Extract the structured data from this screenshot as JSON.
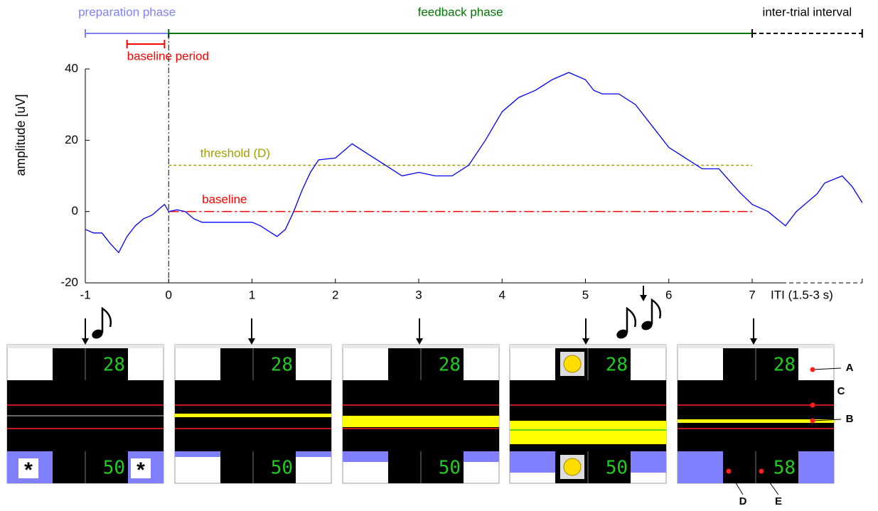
{
  "chart_data": {
    "type": "line",
    "ylabel": "amplitude [uV]",
    "x": [
      -1,
      -0.9,
      -0.8,
      -0.7,
      -0.6,
      -0.5,
      -0.4,
      -0.3,
      -0.2,
      -0.1,
      -0.05,
      0,
      0.1,
      0.2,
      0.3,
      0.4,
      0.6,
      0.8,
      1.0,
      1.1,
      1.3,
      1.4,
      1.5,
      1.6,
      1.7,
      1.8,
      2.0,
      2.2,
      2.4,
      2.6,
      2.8,
      3.0,
      3.2,
      3.4,
      3.6,
      3.8,
      4.0,
      4.2,
      4.4,
      4.6,
      4.8,
      5.0,
      5.1,
      5.2,
      5.4,
      5.6,
      5.8,
      6.0,
      6.2,
      6.4,
      6.6,
      6.85,
      7.0,
      7.19,
      7.4,
      7.53,
      7.78,
      7.87,
      8.08,
      8.2,
      8.32
    ],
    "series": [
      {
        "color": "#0000ff",
        "values": [
          -5,
          -6,
          -6,
          -9,
          -11.5,
          -7,
          -4,
          -2,
          -1,
          1,
          2,
          0,
          0.5,
          0,
          -2,
          -3,
          -3,
          -3,
          -3,
          -4,
          -7,
          -5,
          0,
          6,
          11,
          14.5,
          15,
          19,
          16,
          13,
          10,
          11,
          10,
          10,
          13,
          20,
          28,
          32,
          34,
          37,
          39,
          37,
          34,
          33,
          33,
          30,
          24,
          18,
          15,
          12,
          12,
          5.4,
          2,
          0,
          -4,
          0,
          5,
          8,
          10,
          7,
          2.5
        ]
      }
    ],
    "xlim": [
      -1,
      8.32
    ],
    "ylim": [
      -20,
      40
    ],
    "xticks": [
      -1,
      0,
      1,
      2,
      3,
      4,
      5,
      6,
      7
    ],
    "yticks": [
      -20,
      0,
      20,
      40
    ],
    "iti_label": "ITI (1.5-3 s)",
    "phases": [
      {
        "label": "preparation phase",
        "start": -1,
        "end": 0,
        "color": "#8080ff"
      },
      {
        "label": "feedback phase",
        "start": 0,
        "end": 7,
        "color": "#007700"
      },
      {
        "label": "inter-trial interval",
        "start": 7,
        "end": 8.32,
        "color": "#000000"
      }
    ],
    "baseline_period": {
      "label": "baseline period",
      "start": -0.5,
      "end": -0.05,
      "color": "#ff0000"
    },
    "threshold": {
      "label": "threshold (D)",
      "value": 13,
      "start": 0,
      "end": 7,
      "color": "#a0a000"
    },
    "baseline": {
      "label": "baseline",
      "value": 0,
      "start": 0,
      "end": 7,
      "color": "#ff0000"
    }
  },
  "panels": [
    {
      "top": "28",
      "bottom": "50",
      "symbols": [
        "*",
        "*"
      ]
    },
    {
      "top": "28",
      "bottom": "50"
    },
    {
      "top": "28",
      "bottom": "50"
    },
    {
      "top": "28",
      "bottom": "50"
    },
    {
      "top": "28",
      "bottom": "58"
    }
  ],
  "callouts": [
    "A",
    "B",
    "C",
    "D",
    "E"
  ]
}
